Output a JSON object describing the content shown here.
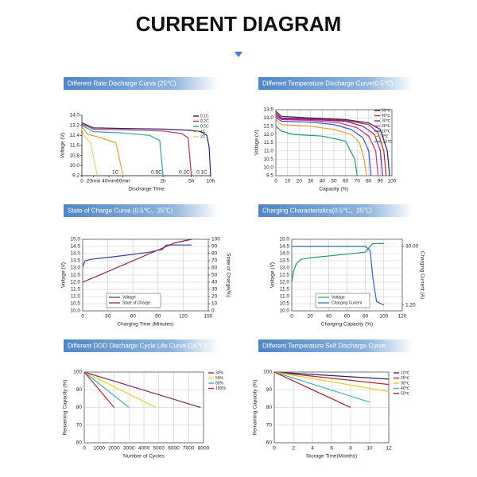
{
  "header": {
    "title": "CURRENT DIAGRAM"
  },
  "chart_data": [
    {
      "type": "line",
      "title": "Different Rate Discharge Curve (25℃)",
      "xlabel": "Discharge Time",
      "ylabel": "Voltage (V)",
      "xscale": "uneven",
      "xlim": [
        0,
        600
      ],
      "ylim": [
        9.2,
        14.0
      ],
      "grid": false,
      "legend": "upper right",
      "xticks": [
        0,
        {
          "value": 20,
          "label": "20min"
        },
        {
          "value": 40,
          "label": "40min"
        },
        {
          "value": 60,
          "label": "60min"
        },
        {
          "value": 120,
          "label": "2h"
        },
        {
          "value": 300,
          "label": "5h"
        },
        {
          "value": 600,
          "label": "10h"
        }
      ],
      "yticks": [
        9.2,
        {
          "value": 10.0,
          "label": "10.0"
        },
        10.8,
        11.6,
        12.4,
        13.2,
        {
          "value": 14.0,
          "label": "14.0"
        }
      ],
      "annotations": [
        "1C",
        "0.5C",
        "0.2C",
        "0.1C"
      ],
      "series": [
        {
          "name": "0.1C",
          "color": "#1f2a6b",
          "x": [
            0,
            20,
            60,
            120,
            300,
            450,
            540,
            575,
            600
          ],
          "values": [
            13.4,
            13.0,
            12.95,
            12.9,
            12.8,
            12.7,
            12.4,
            11.5,
            9.2
          ]
        },
        {
          "name": "0.2C",
          "color": "#c0305a",
          "x": [
            0,
            20,
            60,
            120,
            240,
            280,
            300
          ],
          "values": [
            13.3,
            12.9,
            12.85,
            12.75,
            12.55,
            12.2,
            9.2
          ]
        },
        {
          "name": "0.5C",
          "color": "#2aa0b8",
          "x": [
            0,
            20,
            60,
            100,
            115,
            120
          ],
          "values": [
            13.2,
            12.7,
            12.6,
            12.4,
            12.0,
            9.2
          ]
        },
        {
          "name": "1C",
          "color": "#e8a030",
          "x": [
            0,
            10,
            30,
            50,
            60
          ],
          "values": [
            13.1,
            12.5,
            12.2,
            11.8,
            9.2
          ]
        },
        {
          "name": "2C",
          "color": "#f0d070",
          "x": [
            0,
            5,
            15,
            25
          ],
          "values": [
            12.9,
            12.3,
            11.8,
            9.2
          ]
        }
      ]
    },
    {
      "type": "line",
      "title": "Different Temperature Discharge Curve(0.5℃)",
      "xlabel": "Capacity (%)",
      "ylabel": "Voltage (V)",
      "xlim": [
        0,
        100
      ],
      "ylim": [
        9.5,
        13.5
      ],
      "grid": true,
      "legend": "upper right",
      "xticks": [
        0,
        10,
        20,
        30,
        40,
        50,
        60,
        70,
        80,
        90,
        100
      ],
      "yticks": [
        9.5,
        {
          "value": 10,
          "label": "10.0"
        },
        10.5,
        {
          "value": 11,
          "label": "11.0"
        },
        11.5,
        {
          "value": 12,
          "label": "12.0"
        },
        12.5,
        {
          "value": 13,
          "label": "13.0"
        },
        13.5
      ],
      "series": [
        {
          "name": "50℃",
          "color": "#1f2a6b",
          "x": [
            0,
            5,
            30,
            60,
            80,
            90,
            96,
            98
          ],
          "values": [
            13.4,
            13.1,
            13.0,
            12.9,
            12.7,
            12.3,
            11.0,
            9.5
          ]
        },
        {
          "name": "40℃",
          "color": "#c02030",
          "x": [
            0,
            5,
            30,
            60,
            80,
            88,
            93,
            95
          ],
          "values": [
            13.3,
            13.0,
            12.95,
            12.85,
            12.6,
            12.1,
            11.0,
            9.5
          ]
        },
        {
          "name": "30℃",
          "color": "#7a2a8a",
          "x": [
            0,
            5,
            30,
            60,
            75,
            85,
            90,
            92
          ],
          "values": [
            13.2,
            12.95,
            12.9,
            12.8,
            12.5,
            12.0,
            11.0,
            9.5
          ]
        },
        {
          "name": "20℃",
          "color": "#d02a8a",
          "x": [
            0,
            5,
            30,
            55,
            70,
            80,
            86,
            88
          ],
          "values": [
            13.1,
            12.9,
            12.85,
            12.7,
            12.4,
            11.9,
            11.0,
            9.5
          ]
        },
        {
          "name": "10℃",
          "color": "#3050c0",
          "x": [
            0,
            5,
            30,
            50,
            65,
            75,
            80,
            82
          ],
          "values": [
            13.0,
            12.8,
            12.75,
            12.6,
            12.3,
            11.8,
            11.0,
            9.5
          ]
        },
        {
          "name": "0℃",
          "color": "#e0a030",
          "x": [
            0,
            5,
            30,
            50,
            65,
            72,
            76,
            78
          ],
          "values": [
            12.9,
            12.6,
            12.5,
            12.3,
            12.0,
            11.5,
            10.5,
            9.5
          ]
        },
        {
          "name": "-10℃",
          "color": "#1a9a7a",
          "x": [
            0,
            5,
            15,
            40,
            60,
            68,
            70
          ],
          "values": [
            12.5,
            12.2,
            12.0,
            11.9,
            11.6,
            10.5,
            9.5
          ]
        }
      ]
    },
    {
      "type": "line",
      "title": "State of Charge Curve (0.5℃、25℃)",
      "xlabel": "Charging Time (Minutes)",
      "ylabel": "Voltage (V)",
      "y2label": "State of Charge(%)",
      "xlim": [
        0,
        150
      ],
      "ylim": [
        10,
        15
      ],
      "y2lim": [
        0,
        100
      ],
      "grid": true,
      "legend": "lower left",
      "xticks": [
        0,
        30,
        60,
        90,
        120,
        150
      ],
      "yticks": [
        {
          "value": 10,
          "label": "10.0"
        },
        10.5,
        {
          "value": 11,
          "label": "11.0"
        },
        11.5,
        {
          "value": 12,
          "label": "12.0"
        },
        12.5,
        {
          "value": 13,
          "label": "13.0"
        },
        13.5,
        {
          "value": 14,
          "label": "14.0"
        },
        14.5,
        {
          "value": 15,
          "label": "15.0"
        }
      ],
      "y2ticks": [
        0,
        10,
        20,
        30,
        40,
        50,
        60,
        70,
        80,
        90,
        100
      ],
      "series": [
        {
          "name": "Voltage",
          "color": "#3a3a9a",
          "x": [
            0,
            3,
            10,
            40,
            80,
            95,
            100,
            130
          ],
          "values": [
            13.1,
            13.5,
            13.6,
            13.8,
            14.1,
            14.3,
            14.6,
            14.6
          ]
        },
        {
          "name": "State of Charge",
          "color": "#8b1a4a",
          "axis": "y2",
          "x": [
            0,
            30,
            60,
            90,
            110,
            130
          ],
          "values": [
            40,
            55,
            70,
            85,
            95,
            100
          ]
        }
      ]
    },
    {
      "type": "line",
      "title": "Charging Characteristics(0.5℃、25℃)",
      "xlabel": "Charging Capacity (%)",
      "ylabel": "Voltage (V)",
      "y2label": "Charging Current (A)",
      "xlim": [
        0,
        120
      ],
      "ylim": [
        10,
        15
      ],
      "y2lim": [
        -1.6,
        33.5
      ],
      "grid": true,
      "legend": "lower left",
      "xticks": [
        0,
        20,
        40,
        60,
        80,
        100,
        120
      ],
      "yticks": [
        {
          "value": 10,
          "label": "10.0"
        },
        10.5,
        {
          "value": 11,
          "label": "11.0"
        },
        11.5,
        {
          "value": 12,
          "label": "12.0"
        },
        12.5,
        {
          "value": 13,
          "label": "13.0"
        },
        13.5,
        {
          "value": 14,
          "label": "14.0"
        },
        14.5,
        {
          "value": 15,
          "label": "15.0"
        }
      ],
      "y2ticks": [
        {
          "value": 1.2,
          "label": "1.20"
        },
        {
          "value": 30,
          "label": "30.00"
        }
      ],
      "series": [
        {
          "name": "Voltage",
          "color": "#1a9a6a",
          "x": [
            0,
            2,
            5,
            10,
            20,
            50,
            80,
            85,
            88,
            100
          ],
          "values": [
            12.0,
            12.8,
            13.3,
            13.6,
            13.7,
            13.9,
            14.1,
            14.5,
            14.7,
            14.7
          ]
        },
        {
          "name": "Charging Current",
          "color": "#3060c0",
          "axis": "y2",
          "x": [
            0,
            80,
            85,
            88,
            92,
            100
          ],
          "values": [
            30,
            30,
            28,
            15,
            3,
            1.2
          ]
        }
      ]
    },
    {
      "type": "line",
      "title": "Different DOD Discharge Cycle Life Curve (15℃)",
      "xlabel": "Number of Cycles",
      "ylabel": "Remaining Capacity (%)",
      "xlim": [
        0,
        8000
      ],
      "ylim": [
        60,
        100
      ],
      "grid": true,
      "legend": "right",
      "xticks": [
        0,
        1000,
        2000,
        3000,
        4000,
        5000,
        6000,
        7000,
        8000
      ],
      "yticks": [
        60,
        70,
        80,
        90,
        100
      ],
      "series": [
        {
          "name": "30%",
          "color": "#7a2a6a",
          "x": [
            0,
            7800
          ],
          "values": [
            100,
            80
          ]
        },
        {
          "name": "50%",
          "color": "#e8d020",
          "x": [
            0,
            4800
          ],
          "values": [
            100,
            80
          ]
        },
        {
          "name": "80%",
          "color": "#40b0c0",
          "x": [
            0,
            3000
          ],
          "values": [
            100,
            80
          ]
        },
        {
          "name": "100%",
          "color": "#c02030",
          "x": [
            0,
            2000
          ],
          "values": [
            100,
            80
          ]
        }
      ]
    },
    {
      "type": "line",
      "title": "Different Temperature Self Discharge Curve",
      "xlabel": "Storage Time(Months)",
      "ylabel": "Remaining Capacity (%)",
      "xlim": [
        0,
        12
      ],
      "ylim": [
        60,
        100
      ],
      "grid": true,
      "legend": "right",
      "xticks": [
        0,
        2,
        4,
        6,
        8,
        10,
        12
      ],
      "yticks": [
        60,
        70,
        80,
        90,
        100
      ],
      "series": [
        {
          "name": "10℃",
          "color": "#1f2a6b",
          "x": [
            0,
            12
          ],
          "values": [
            100,
            96
          ]
        },
        {
          "name": "25℃",
          "color": "#c02030",
          "x": [
            0,
            12
          ],
          "values": [
            100,
            93
          ]
        },
        {
          "name": "30℃",
          "color": "#e8d020",
          "x": [
            0,
            12
          ],
          "values": [
            100,
            89
          ]
        },
        {
          "name": "40℃",
          "color": "#40b0c0",
          "x": [
            0,
            10
          ],
          "values": [
            100,
            83
          ]
        },
        {
          "name": "50℃",
          "color": "#a01828",
          "x": [
            0,
            8
          ],
          "values": [
            100,
            80
          ]
        }
      ]
    }
  ]
}
